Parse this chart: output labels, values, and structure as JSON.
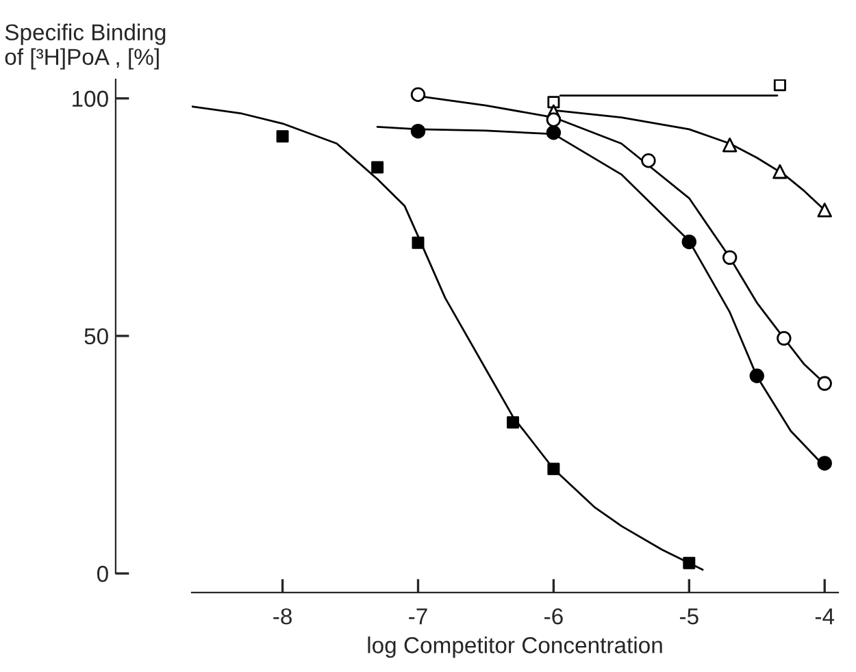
{
  "chart_data": {
    "type": "scatter",
    "xlabel": "log Competitor Concentration",
    "ylabel": "Specific Binding\nof [³H]PoA , [%]",
    "xlim": [
      -8.67,
      -3.9
    ],
    "xticks": [
      -8,
      -7,
      -6,
      -5,
      -4
    ],
    "ylim": [
      0,
      104
    ],
    "yticks": [
      0,
      50,
      100
    ],
    "grid": false,
    "legend": false,
    "series": [
      {
        "marker": "square",
        "color": "#000000",
        "x": [
          -8,
          -7.3,
          -7,
          -6.3,
          -6,
          -5
        ],
        "values": [
          92,
          85.5,
          69.6,
          31.8,
          22,
          2.2
        ]
      },
      {
        "type": "line",
        "marker": "none",
        "color": "#000000",
        "x": [
          -8.67,
          -8.3,
          -8,
          -7.6,
          -7.3,
          -7.1,
          -7,
          -6.8,
          -6.5,
          -6.3,
          -6,
          -5.7,
          -5.5,
          -5.2,
          -5,
          -4.9
        ],
        "values": [
          98.3,
          96.8,
          94.7,
          90.5,
          83,
          77.4,
          71,
          58,
          43,
          33,
          22,
          14,
          10,
          5,
          2.2,
          0.8
        ]
      },
      {
        "marker": "circle",
        "color": "#000000",
        "x": [
          -7,
          -6,
          -5,
          -4.5,
          -4
        ],
        "values": [
          93.1,
          92.8,
          69.8,
          41.6,
          23.2
        ]
      },
      {
        "type": "line",
        "marker": "none",
        "color": "#000000",
        "x": [
          -7.3,
          -7,
          -6.5,
          -6,
          -5.5,
          -5,
          -4.7,
          -4.5,
          -4.25,
          -4
        ],
        "values": [
          94,
          93.5,
          93.2,
          92.5,
          84,
          70,
          55,
          41.5,
          30,
          22.5
        ]
      },
      {
        "marker": "circle",
        "color": "#ffffff",
        "x": [
          -7,
          -6,
          -5.3,
          -4.7,
          -4.3,
          -4
        ],
        "values": [
          100.8,
          95.5,
          86.9,
          66.5,
          49.5,
          40
        ]
      },
      {
        "type": "line",
        "marker": "none",
        "color": "#000000",
        "x": [
          -7,
          -6.5,
          -6,
          -5.5,
          -5,
          -4.7,
          -4.5,
          -4.3,
          -4.15,
          -4
        ],
        "values": [
          100.5,
          98.5,
          96,
          90.5,
          79,
          66.5,
          57,
          49.5,
          44,
          40
        ]
      },
      {
        "marker": "triangle",
        "color": "#ffffff",
        "x": [
          -6,
          -4.7,
          -4.33,
          -4
        ],
        "values": [
          97.2,
          90.2,
          84.6,
          76.5
        ]
      },
      {
        "type": "line",
        "marker": "none",
        "color": "#000000",
        "x": [
          -6,
          -5.5,
          -5,
          -4.7,
          -4.5,
          -4.3,
          -4.15,
          -4
        ],
        "values": [
          97.5,
          96,
          93.5,
          90.5,
          87.5,
          84,
          80.5,
          76.5
        ]
      },
      {
        "marker": "square",
        "color": "#ffffff",
        "x": [
          -6,
          -4.33
        ],
        "values": [
          99.2,
          102.8
        ]
      },
      {
        "type": "line",
        "marker": "none",
        "color": "#000000",
        "x": [
          -5.95,
          -4.35
        ],
        "values": [
          100.6,
          100.6
        ]
      }
    ]
  }
}
